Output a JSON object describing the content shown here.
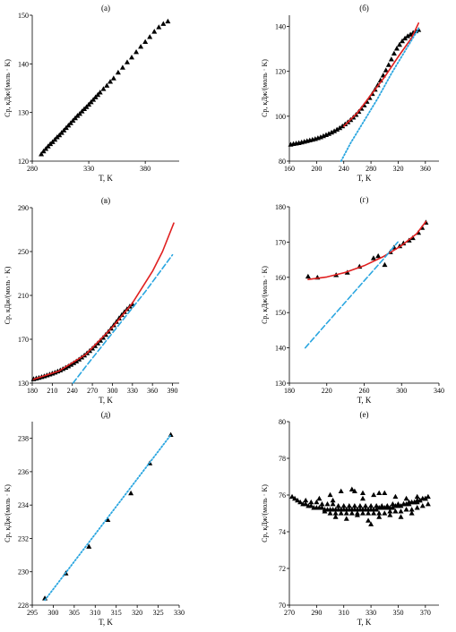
{
  "chart_data": [
    {
      "type": "scatter",
      "title": "(а)",
      "xlabel": "T, K",
      "ylabel": "Cp, кДж/(моль · K)",
      "xlim": [
        280,
        410
      ],
      "ylim": [
        120,
        150
      ],
      "xticks": [
        280,
        330,
        380
      ],
      "yticks": [
        120,
        130,
        140,
        150
      ],
      "series": [
        {
          "kind": "points",
          "x": [
            288,
            290,
            292,
            294,
            296,
            298,
            300,
            302,
            304,
            306,
            308,
            310,
            312,
            314,
            316,
            318,
            320,
            322,
            324,
            326,
            328,
            330,
            332,
            334,
            336,
            338,
            340,
            343,
            346,
            349,
            352,
            356,
            360,
            364,
            368,
            372,
            376,
            380,
            384,
            388,
            392,
            396,
            400
          ],
          "y": [
            121.4,
            122.0,
            122.5,
            123.0,
            123.5,
            123.9,
            124.4,
            124.9,
            125.3,
            125.8,
            126.3,
            126.8,
            127.3,
            127.8,
            128.3,
            128.8,
            129.3,
            129.7,
            130.2,
            130.7,
            131.1,
            131.6,
            132.1,
            132.6,
            133.1,
            133.6,
            134.1,
            134.8,
            135.5,
            136.3,
            137.0,
            138.2,
            139.2,
            140.3,
            141.3,
            142.4,
            143.5,
            144.5,
            145.5,
            146.6,
            147.5,
            148.2,
            148.7
          ]
        }
      ]
    },
    {
      "type": "scatter",
      "title": "(б)",
      "xlabel": "T, K",
      "ylabel": "Cp, кДж/(моль · K)",
      "xlim": [
        160,
        380
      ],
      "ylim": [
        80,
        145
      ],
      "xticks": [
        160,
        200,
        240,
        280,
        320,
        360
      ],
      "yticks": [
        80,
        100,
        120,
        140
      ],
      "series": [
        {
          "kind": "points",
          "x": [
            162,
            166,
            170,
            174,
            178,
            182,
            186,
            190,
            194,
            198,
            202,
            206,
            210,
            214,
            218,
            222,
            226,
            230,
            234,
            238,
            242,
            246,
            250,
            254,
            258,
            262,
            266,
            270,
            274,
            278,
            282,
            286,
            290,
            294,
            298,
            302,
            306,
            310,
            314,
            318,
            322,
            326,
            330,
            334,
            338,
            342,
            346,
            350
          ],
          "y": [
            87.3,
            87.6,
            87.8,
            88.0,
            88.3,
            88.6,
            88.9,
            89.2,
            89.5,
            89.8,
            90.2,
            90.6,
            91.1,
            91.6,
            92.1,
            92.7,
            93.3,
            94.0,
            94.7,
            95.5,
            96.4,
            97.3,
            98.3,
            99.4,
            100.6,
            101.9,
            103.3,
            104.8,
            106.4,
            108.1,
            109.9,
            111.8,
            113.8,
            115.9,
            118.1,
            120.4,
            122.8,
            125.3,
            127.9,
            130.1,
            131.8,
            133.4,
            134.6,
            135.6,
            136.3,
            137.1,
            137.8,
            138.4
          ]
        },
        {
          "kind": "solid",
          "color": "#e02020",
          "x": [
            240,
            260,
            280,
            300,
            320,
            340,
            350
          ],
          "y": [
            95.5,
            101.5,
            109.5,
            117.5,
            126.5,
            135.0,
            141.5
          ]
        },
        {
          "kind": "dotted",
          "color": "#2aa6e0",
          "x": [
            236,
            250,
            270,
            290,
            310,
            330,
            350
          ],
          "y": [
            80,
            88,
            98,
            108,
            119,
            129,
            139
          ]
        }
      ]
    },
    {
      "type": "scatter",
      "title": "(в)",
      "xlabel": "T, K",
      "ylabel": "Cp, кДж/(моль · K)",
      "xlim": [
        180,
        400
      ],
      "ylim": [
        130,
        290
      ],
      "xticks": [
        180,
        210,
        240,
        270,
        300,
        330,
        360,
        390
      ],
      "yticks": [
        130,
        170,
        210,
        250,
        290
      ],
      "series": [
        {
          "kind": "points",
          "x": [
            182,
            186,
            190,
            194,
            198,
            202,
            206,
            210,
            214,
            218,
            222,
            226,
            230,
            234,
            238,
            242,
            246,
            250,
            254,
            258,
            262,
            266,
            270,
            274,
            278,
            282,
            286,
            290,
            294,
            298,
            302,
            306,
            310,
            314,
            318,
            322,
            326,
            330
          ],
          "y": [
            133.6,
            134.2,
            134.8,
            135.5,
            136.2,
            137.0,
            137.8,
            138.7,
            139.6,
            140.6,
            141.6,
            142.8,
            144.0,
            145.3,
            146.7,
            148.2,
            149.8,
            151.5,
            153.3,
            155.2,
            157.2,
            159.3,
            161.5,
            163.8,
            166.2,
            168.7,
            171.3,
            174.0,
            176.8,
            179.7,
            182.7,
            185.8,
            189.0,
            192.0,
            194.8,
            197.4,
            199.8,
            201.8
          ]
        },
        {
          "kind": "solid",
          "color": "#e02020",
          "x": [
            182,
            220,
            260,
            300,
            330,
            360,
            375,
            392
          ],
          "y": [
            133.5,
            141.0,
            156.0,
            181.0,
            203.0,
            232.0,
            250.0,
            276.0
          ]
        },
        {
          "kind": "dashed",
          "color": "#2aa6e0",
          "x": [
            241,
            260,
            290,
            320,
            350,
            390
          ],
          "y": [
            130,
            145,
            168,
            191,
            214,
            247
          ]
        }
      ]
    },
    {
      "type": "scatter",
      "title": "(г)",
      "xlabel": "T, K",
      "ylabel": "Cp, кДж/(моль · K)",
      "xlim": [
        180,
        340
      ],
      "ylim": [
        130,
        180
      ],
      "xticks": [
        180,
        220,
        260,
        300,
        340
      ],
      "yticks": [
        130,
        140,
        150,
        160,
        170,
        180
      ],
      "series": [
        {
          "kind": "points",
          "x": [
            200,
            210,
            230,
            242,
            255,
            270,
            275,
            282,
            288,
            292,
            298,
            302,
            308,
            312,
            318,
            322,
            326
          ],
          "y": [
            160.2,
            159.9,
            160.6,
            161.3,
            163.0,
            165.4,
            166.0,
            163.5,
            167.1,
            168.4,
            168.8,
            169.6,
            170.4,
            171.1,
            172.6,
            174.0,
            175.5
          ]
        },
        {
          "kind": "solid",
          "color": "#e02020",
          "x": [
            200,
            220,
            240,
            260,
            280,
            300,
            316,
            326
          ],
          "y": [
            159.4,
            160.1,
            161.4,
            163.3,
            165.8,
            169.0,
            172.3,
            175.8
          ]
        },
        {
          "kind": "dashed",
          "color": "#2aa6e0",
          "x": [
            197,
            220,
            240,
            260,
            280,
            296
          ],
          "y": [
            140.0,
            147.0,
            153.0,
            159.0,
            165.0,
            170.0
          ]
        }
      ]
    },
    {
      "type": "scatter",
      "title": "(д)",
      "xlabel": "T, K",
      "ylabel": "Cp, кДж/(моль · K)",
      "xlim": [
        295,
        330
      ],
      "ylim": [
        228,
        239
      ],
      "xticks": [
        295,
        300,
        305,
        310,
        315,
        320,
        325,
        330
      ],
      "yticks": [
        228,
        230,
        232,
        234,
        236,
        238
      ],
      "series": [
        {
          "kind": "points",
          "x": [
            298,
            303,
            308.5,
            313,
            318.5,
            323,
            328
          ],
          "y": [
            228.4,
            229.9,
            231.5,
            233.1,
            234.7,
            236.5,
            238.2
          ]
        },
        {
          "kind": "dotted",
          "color": "#2aa6e0",
          "x": [
            298,
            328
          ],
          "y": [
            228.3,
            238.2
          ]
        }
      ]
    },
    {
      "type": "scatter",
      "title": "(е)",
      "xlabel": "T, K",
      "ylabel": "Cp, кДж/(моль · K)",
      "xlim": [
        270,
        380
      ],
      "ylim": [
        70,
        80
      ],
      "xticks": [
        270,
        290,
        310,
        330,
        350,
        370
      ],
      "yticks": [
        70,
        72,
        74,
        76,
        78,
        80
      ],
      "series": [
        {
          "kind": "points",
          "x": [
            272,
            274,
            276,
            278,
            280,
            282,
            284,
            286,
            288,
            290,
            292,
            294,
            296,
            298,
            300,
            302,
            304,
            306,
            308,
            310,
            312,
            314,
            316,
            318,
            320,
            322,
            324,
            326,
            328,
            330,
            332,
            334,
            336,
            338,
            340,
            342,
            344,
            346,
            348,
            350,
            352,
            354,
            356,
            358,
            360,
            362,
            364,
            366,
            368,
            370,
            372,
            282,
            286,
            290,
            294,
            298,
            302,
            306,
            310,
            314,
            318,
            322,
            326,
            330,
            334,
            338,
            342,
            346,
            350,
            354,
            358,
            362,
            366,
            370,
            296,
            300,
            304,
            308,
            312,
            316,
            320,
            324,
            328,
            332,
            336,
            340,
            344,
            348,
            352,
            356,
            360,
            364,
            368,
            372,
            292,
            300,
            308,
            316,
            324,
            332,
            340,
            348,
            356,
            364,
            304,
            312,
            320,
            328,
            336,
            344,
            352,
            360,
            302,
            318,
            324,
            330,
            336,
            348,
            356,
            364
          ],
          "y": [
            75.9,
            75.8,
            75.7,
            75.6,
            75.5,
            75.5,
            75.4,
            75.4,
            75.3,
            75.3,
            75.3,
            75.3,
            75.2,
            75.2,
            75.2,
            75.2,
            75.2,
            75.2,
            75.2,
            75.2,
            75.2,
            75.2,
            75.2,
            75.2,
            75.2,
            75.2,
            75.2,
            75.2,
            75.2,
            75.2,
            75.2,
            75.2,
            75.3,
            75.3,
            75.3,
            75.3,
            75.3,
            75.3,
            75.4,
            75.4,
            75.4,
            75.5,
            75.5,
            75.5,
            75.6,
            75.6,
            75.7,
            75.7,
            75.8,
            75.8,
            75.9,
            75.7,
            75.6,
            75.6,
            75.5,
            75.5,
            75.5,
            75.4,
            75.4,
            75.4,
            75.4,
            75.4,
            75.4,
            75.4,
            75.4,
            75.4,
            75.4,
            75.5,
            75.5,
            75.5,
            75.6,
            75.6,
            75.7,
            75.8,
            75.1,
            75.0,
            75.0,
            75.0,
            75.0,
            75.0,
            75.0,
            75.0,
            75.0,
            75.0,
            75.0,
            75.0,
            75.1,
            75.1,
            75.1,
            75.2,
            75.2,
            75.3,
            75.4,
            75.5,
            75.8,
            76.0,
            76.2,
            76.3,
            76.1,
            76.0,
            76.1,
            75.9,
            75.8,
            75.9,
            74.8,
            74.7,
            74.9,
            74.6,
            74.8,
            74.9,
            74.8,
            75.0,
            75.7,
            76.2,
            75.8,
            74.4,
            76.1,
            75.1,
            75.2,
            75.6
          ]
        }
      ]
    }
  ]
}
